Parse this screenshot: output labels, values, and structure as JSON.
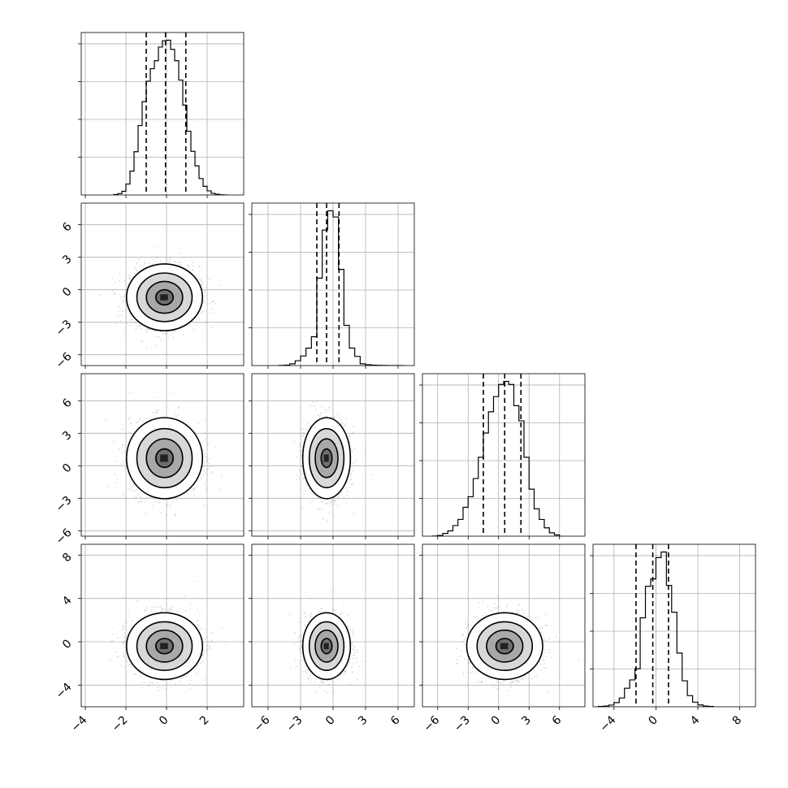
{
  "chart_data": {
    "type": "corner",
    "title": "",
    "parameters": [
      "",
      "",
      "",
      ""
    ],
    "grid": true,
    "quantile_lines": "dashed",
    "x_ranges": [
      [
        -4.2,
        3.8
      ],
      [
        -7.5,
        7.5
      ],
      [
        -7.5,
        8.5
      ],
      [
        -6,
        9.5
      ]
    ],
    "y_ranges": [
      null,
      [
        -7,
        8
      ],
      [
        -6.5,
        8.5
      ],
      [
        -6,
        9
      ]
    ],
    "x_ticks": [
      [
        -4,
        -2,
        0,
        2
      ],
      [
        -6,
        -3,
        0,
        3,
        6
      ],
      [
        -6,
        -3,
        0,
        3,
        6
      ],
      [
        -4,
        0,
        4,
        8
      ]
    ],
    "y_ticks": [
      null,
      [
        -6,
        -3,
        0,
        3,
        6
      ],
      [
        -6,
        -3,
        0,
        3,
        6
      ],
      [
        -4,
        0,
        4,
        8
      ]
    ],
    "x_tick_labels": [
      [
        "−4",
        "−2",
        "0",
        "2"
      ],
      [
        "−6",
        "−3",
        "0",
        "3",
        "6"
      ],
      [
        "−6",
        "−3",
        "0",
        "3",
        "6"
      ],
      [
        "−4",
        "0",
        "4",
        "8"
      ]
    ],
    "y_tick_labels": [
      null,
      [
        "−6",
        "−3",
        "0",
        "3",
        "6"
      ],
      [
        "−6",
        "−3",
        "0",
        "3",
        "6"
      ],
      [
        "−4",
        "0",
        "4",
        "8"
      ]
    ],
    "quantiles": [
      [
        -1.0,
        -0.05,
        0.95
      ],
      [
        -1.5,
        -0.6,
        0.55
      ],
      [
        -1.5,
        0.6,
        2.2
      ],
      [
        -1.9,
        -0.3,
        1.2
      ]
    ],
    "histograms": [
      {
        "bin_edges": [
          -2.6,
          -2.4,
          -2.2,
          -2.0,
          -1.8,
          -1.6,
          -1.4,
          -1.2,
          -1.0,
          -0.8,
          -0.6,
          -0.4,
          -0.2,
          0.0,
          0.2,
          0.4,
          0.6,
          0.8,
          1.0,
          1.2,
          1.4,
          1.6,
          1.8,
          2.0,
          2.2,
          2.4,
          2.6,
          2.8,
          3.0
        ],
        "counts": [
          2,
          6,
          16,
          48,
          105,
          190,
          305,
          410,
          500,
          555,
          590,
          650,
          678,
          680,
          640,
          590,
          505,
          395,
          280,
          192,
          128,
          72,
          38,
          18,
          7,
          3,
          1,
          0
        ]
      },
      {
        "bin_edges": [
          -5.0,
          -4.5,
          -4.0,
          -3.5,
          -3.0,
          -2.5,
          -2.0,
          -1.5,
          -1.0,
          -0.5,
          0.0,
          0.5,
          1.0,
          1.5,
          2.0,
          2.5,
          3.0,
          3.5,
          4.0,
          4.5,
          5.0,
          5.5,
          6.0,
          6.5
        ],
        "counts": [
          1,
          5,
          20,
          55,
          110,
          200,
          330,
          1000,
          1550,
          1770,
          1700,
          1100,
          460,
          200,
          105,
          20,
          10,
          5,
          2,
          1,
          0,
          0,
          0
        ]
      },
      {
        "bin_edges": [
          -6.5,
          -6.0,
          -5.5,
          -5.0,
          -4.5,
          -4.0,
          -3.5,
          -3.0,
          -2.5,
          -2.0,
          -1.5,
          -1.0,
          -0.5,
          0.0,
          0.5,
          1.0,
          1.5,
          2.0,
          2.5,
          3.0,
          3.5,
          4.0,
          4.5,
          5.0,
          5.5,
          6.0
        ],
        "counts": [
          1,
          5,
          18,
          35,
          70,
          110,
          190,
          260,
          380,
          520,
          680,
          820,
          920,
          1000,
          1020,
          1000,
          860,
          760,
          520,
          310,
          180,
          110,
          55,
          22,
          8,
          2
        ]
      },
      {
        "bin_edges": [
          -5.5,
          -5.0,
          -4.5,
          -4.0,
          -3.5,
          -3.0,
          -2.5,
          -2.0,
          -1.5,
          -1.0,
          -0.5,
          0.0,
          0.5,
          1.0,
          1.5,
          2.0,
          2.5,
          3.0,
          3.5,
          4.0,
          4.5,
          5.0,
          5.5
        ],
        "counts": [
          4,
          8,
          18,
          45,
          95,
          200,
          290,
          410,
          960,
          1300,
          1380,
          1610,
          1670,
          1310,
          1020,
          580,
          280,
          120,
          50,
          20,
          8,
          3
        ]
      }
    ],
    "pairs": [
      {
        "row": 1,
        "col": 0,
        "center": [
          -0.1,
          -0.7
        ],
        "std": [
          0.85,
          1.4
        ]
      },
      {
        "row": 2,
        "col": 0,
        "center": [
          -0.1,
          0.7
        ],
        "std": [
          0.85,
          1.7
        ]
      },
      {
        "row": 2,
        "col": 1,
        "center": [
          -0.6,
          0.7
        ],
        "std": [
          1.0,
          1.7
        ]
      },
      {
        "row": 3,
        "col": 0,
        "center": [
          -0.1,
          -0.4
        ],
        "std": [
          0.85,
          1.4
        ]
      },
      {
        "row": 3,
        "col": 1,
        "center": [
          -0.6,
          -0.4
        ],
        "std": [
          1.0,
          1.4
        ]
      },
      {
        "row": 3,
        "col": 2,
        "center": [
          0.6,
          -0.4
        ],
        "std": [
          1.7,
          1.4
        ]
      }
    ]
  }
}
